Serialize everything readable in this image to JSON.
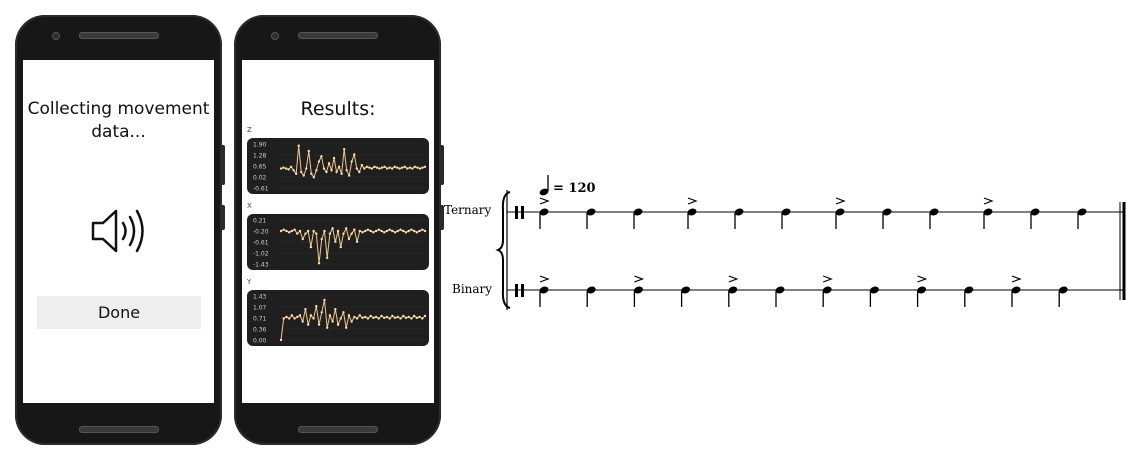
{
  "phone1": {
    "status_text_line1": "Collecting movement",
    "status_text_line2": "data...",
    "done_label": "Done",
    "icon": "speaker-sound-icon"
  },
  "phone2": {
    "title": "Results:",
    "charts": [
      {
        "axis": "Z",
        "ticks": [
          "1.90",
          "1.28",
          "0.65",
          "0.02",
          "-0.61"
        ],
        "ylim": [
          -0.61,
          1.9
        ],
        "values": [
          0.5,
          0.55,
          0.5,
          0.45,
          0.6,
          0.4,
          0.2,
          1.8,
          0.3,
          0.1,
          0.5,
          1.5,
          0.2,
          0.0,
          0.4,
          0.9,
          1.2,
          0.5,
          0.3,
          0.8,
          0.4,
          1.1,
          0.3,
          0.6,
          0.2,
          1.6,
          0.4,
          0.1,
          0.9,
          1.3,
          0.5,
          0.3,
          0.7,
          0.5,
          0.6,
          0.55,
          0.5,
          0.6,
          0.55,
          0.5,
          0.55,
          0.6,
          0.5,
          0.55,
          0.5,
          0.6,
          0.55,
          0.5,
          0.55,
          0.6,
          0.5,
          0.55,
          0.5,
          0.6,
          0.55,
          0.5,
          0.55,
          0.6
        ]
      },
      {
        "axis": "X",
        "ticks": [
          "0.21",
          "-0.20",
          "-0.61",
          "-1.02",
          "-1.43"
        ],
        "ylim": [
          -1.43,
          0.21
        ],
        "values": [
          -0.2,
          -0.15,
          -0.2,
          -0.25,
          -0.2,
          -0.15,
          -0.3,
          -0.2,
          -0.5,
          -0.3,
          -0.2,
          -0.8,
          -0.2,
          -0.3,
          -1.4,
          -0.5,
          -0.2,
          -1.2,
          -0.3,
          -0.1,
          -0.6,
          -0.2,
          -0.8,
          -0.3,
          -0.1,
          -0.5,
          -0.3,
          -0.15,
          -0.6,
          -0.2,
          -0.25,
          -0.2,
          -0.15,
          -0.2,
          -0.25,
          -0.2,
          -0.15,
          -0.2,
          -0.25,
          -0.2,
          -0.15,
          -0.2,
          -0.25,
          -0.2,
          -0.15,
          -0.2,
          -0.25,
          -0.2,
          -0.15,
          -0.2,
          -0.25,
          -0.2,
          -0.15,
          -0.2
        ]
      },
      {
        "axis": "Y",
        "ticks": [
          "1.43",
          "1.07",
          "0.71",
          "0.36",
          "0.00"
        ],
        "ylim": [
          0.0,
          1.43
        ],
        "values": [
          0.0,
          0.7,
          0.75,
          0.7,
          0.8,
          0.7,
          0.75,
          0.8,
          0.6,
          1.0,
          0.5,
          0.8,
          0.7,
          1.1,
          0.5,
          0.9,
          1.3,
          0.4,
          0.8,
          0.6,
          1.0,
          0.5,
          0.7,
          0.9,
          0.4,
          0.8,
          0.6,
          0.75,
          0.7,
          0.8,
          0.72,
          0.75,
          0.7,
          0.78,
          0.72,
          0.75,
          0.7,
          0.78,
          0.72,
          0.75,
          0.7,
          0.78,
          0.72,
          0.75,
          0.7,
          0.78,
          0.72,
          0.75,
          0.7,
          0.78,
          0.72,
          0.75,
          0.7,
          0.78
        ]
      }
    ]
  },
  "score": {
    "tempo_value": "= 120",
    "staves": [
      {
        "label": "Ternary",
        "notes": 12,
        "accents": [
          0,
          3,
          6,
          9
        ]
      },
      {
        "label": "Binary",
        "notes": 12,
        "accents": [
          0,
          2,
          4,
          6,
          8,
          10
        ]
      }
    ]
  },
  "colors": {
    "phone_body": "#171717",
    "chart_bg": "#1f1f1f",
    "chart_line": "#f0c890",
    "button_bg": "#eeeeee"
  }
}
